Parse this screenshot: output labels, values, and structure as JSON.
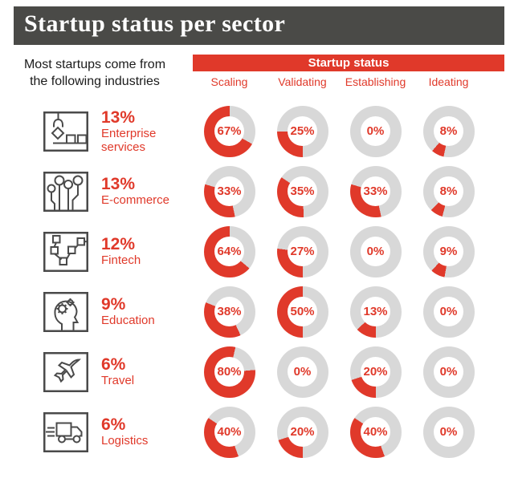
{
  "header": {
    "title": "Startup status per sector"
  },
  "intro": {
    "line1": "Most startups come from",
    "line2": "the following industries"
  },
  "status_header": {
    "label": "Startup status"
  },
  "colors": {
    "accent_red": "#e0392a",
    "ring_gray": "#d8d8d8",
    "title_bar": "#4a4a47",
    "icon_stroke": "#4a4a4a"
  },
  "chart_data": {
    "type": "donut-grid",
    "title": "Startup status per sector",
    "unit": "percent",
    "legend_position": "top",
    "columns": [
      "Scaling",
      "Validating",
      "Establishing",
      "Ideating"
    ],
    "sectors": [
      {
        "name": "Enterprise services",
        "name_lines": [
          "Enterprise",
          "services"
        ],
        "share": "13%",
        "icon": "crane-claw-icon",
        "values": [
          67,
          25,
          0,
          8
        ],
        "start_angles_deg": [
          119,
          180,
          0,
          192
        ]
      },
      {
        "name": "E-commerce",
        "name_lines": [
          "E-commerce"
        ],
        "share": "13%",
        "icon": "circuit-nodes-icon",
        "values": [
          33,
          35,
          33,
          8
        ],
        "start_angles_deg": [
          168,
          178,
          168,
          195
        ]
      },
      {
        "name": "Fintech",
        "name_lines": [
          "Fintech"
        ],
        "share": "12%",
        "icon": "flowchart-icon",
        "values": [
          64,
          27,
          0,
          9
        ],
        "start_angles_deg": [
          130,
          180,
          0,
          190
        ]
      },
      {
        "name": "Education",
        "name_lines": [
          "Education"
        ],
        "share": "9%",
        "icon": "head-gears-icon",
        "values": [
          38,
          50,
          13,
          0
        ],
        "start_angles_deg": [
          155,
          180,
          180,
          0
        ]
      },
      {
        "name": "Travel",
        "name_lines": [
          "Travel"
        ],
        "share": "6%",
        "icon": "airplane-icon",
        "values": [
          80,
          0,
          20,
          0
        ],
        "start_angles_deg": [
          85,
          0,
          180,
          0
        ]
      },
      {
        "name": "Logistics",
        "name_lines": [
          "Logistics"
        ],
        "share": "6%",
        "icon": "truck-icon",
        "values": [
          40,
          20,
          40,
          0
        ],
        "start_angles_deg": [
          160,
          180,
          160,
          0
        ]
      }
    ]
  }
}
